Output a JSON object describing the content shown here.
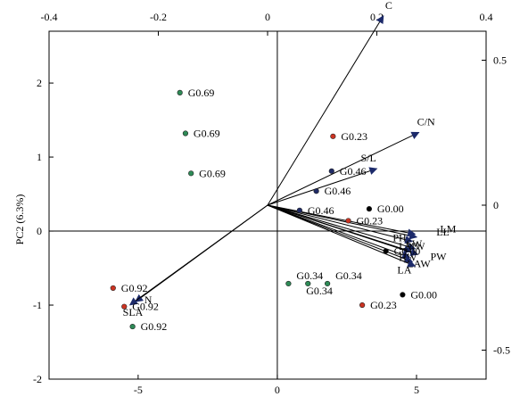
{
  "chart_data": {
    "type": "biplot",
    "ylabel": "PC2 (6.3%)",
    "xlim": [
      -8.2,
      7.5
    ],
    "ylim": [
      -2.0,
      2.7
    ],
    "top_lim": [
      -0.4,
      0.4
    ],
    "right_lim": [
      -0.6,
      0.6
    ],
    "x_ticks": [
      -5,
      0,
      5
    ],
    "y_ticks": [
      -2,
      -1,
      0,
      1,
      2
    ],
    "top_ticks": [
      -0.4,
      -0.2,
      0,
      0.2,
      0.4
    ],
    "right_ticks": [
      -0.5,
      0,
      0.5
    ],
    "top_tick_labels": [
      "-0.4",
      "-0.2",
      "0",
      "0.2",
      "0.4"
    ],
    "right_tick_labels": [
      "-0.5",
      "0",
      "0.5"
    ],
    "points": [
      {
        "label": "G0.69",
        "x": -3.5,
        "y": 1.87,
        "color": "#2e8b57"
      },
      {
        "label": "G0.69",
        "x": -3.3,
        "y": 1.32,
        "color": "#2e8b57"
      },
      {
        "label": "G0.69",
        "x": -3.1,
        "y": 0.78,
        "color": "#2e8b57"
      },
      {
        "label": "G0.23",
        "x": 2.0,
        "y": 1.28,
        "color": "#cc3322"
      },
      {
        "label": "G0.46",
        "x": 1.95,
        "y": 0.81,
        "color": "#1f2a66"
      },
      {
        "label": "G0.46",
        "x": 1.4,
        "y": 0.54,
        "color": "#1f2a66"
      },
      {
        "label": "G0.46",
        "x": 0.8,
        "y": 0.28,
        "color": "#1f2a66"
      },
      {
        "label": "G0.00",
        "x": 3.3,
        "y": 0.3,
        "color": "#000000"
      },
      {
        "label": "G0.23",
        "x": 2.55,
        "y": 0.14,
        "color": "#cc3322"
      },
      {
        "label": "G0.00",
        "x": 3.9,
        "y": -0.27,
        "color": "#000000"
      },
      {
        "label": "G0.34",
        "x": 0.4,
        "y": -0.71,
        "color": "#2e8b57"
      },
      {
        "label": "G0.34",
        "x": 1.1,
        "y": -0.71,
        "color": "#2e8b57"
      },
      {
        "label": "G0.34",
        "x": 1.8,
        "y": -0.71,
        "color": "#2e8b57"
      },
      {
        "label": "G0.00",
        "x": 4.5,
        "y": -0.86,
        "color": "#000000"
      },
      {
        "label": "G0.23",
        "x": 3.05,
        "y": -1.0,
        "color": "#cc3322"
      },
      {
        "label": "G0.92",
        "x": -5.9,
        "y": -0.77,
        "color": "#cc3322"
      },
      {
        "label": "G0.92",
        "x": -5.5,
        "y": -1.02,
        "color": "#cc3322"
      },
      {
        "label": "G0.92",
        "x": -5.2,
        "y": -1.29,
        "color": "#2e8b57"
      }
    ],
    "loadings": [
      {
        "label": "C",
        "x": 0.212,
        "y": 0.653
      },
      {
        "label": "C/N",
        "x": 0.277,
        "y": 0.251
      },
      {
        "label": "S/L",
        "x": 0.2,
        "y": 0.126
      },
      {
        "label": "LL",
        "x": 0.273,
        "y": -0.11
      },
      {
        "label": "LM",
        "x": 0.27,
        "y": -0.1
      },
      {
        "label": "PH",
        "x": 0.265,
        "y": -0.125
      },
      {
        "label": "SW",
        "x": 0.27,
        "y": -0.15
      },
      {
        "label": "LMW",
        "x": 0.263,
        "y": -0.16
      },
      {
        "label": "PW",
        "x": 0.275,
        "y": -0.17
      },
      {
        "label": "HW",
        "x": 0.26,
        "y": -0.18
      },
      {
        "label": "LAW",
        "x": 0.265,
        "y": -0.195
      },
      {
        "label": "LA",
        "x": 0.27,
        "y": -0.21
      },
      {
        "label": "N",
        "x": -0.242,
        "y": -0.333
      },
      {
        "label": "SLA",
        "x": -0.252,
        "y": -0.344
      }
    ]
  }
}
